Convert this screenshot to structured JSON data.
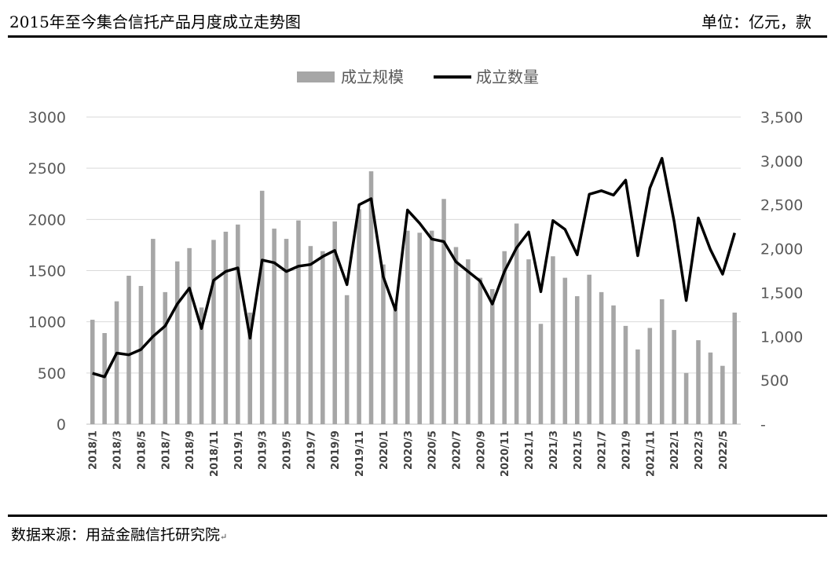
{
  "header": {
    "title": "2015年至今集合信托产品月度成立走势图",
    "unit": "单位：亿元，款"
  },
  "footer": {
    "source": "数据来源：用益金融信托研究院",
    "return_mark": "↵"
  },
  "colors": {
    "bar": "#a6a6a6",
    "line": "#000000",
    "grid": "#d9d9d9",
    "axis": "#bfbfbf"
  },
  "chart_data": {
    "type": "bar+line",
    "legend_position": "top-center",
    "grid": true,
    "categories": [
      "2018/1",
      "2018/2",
      "2018/3",
      "2018/4",
      "2018/5",
      "2018/6",
      "2018/7",
      "2018/8",
      "2018/9",
      "2018/10",
      "2018/11",
      "2018/12",
      "2019/1",
      "2019/2",
      "2019/3",
      "2019/4",
      "2019/5",
      "2019/6",
      "2019/7",
      "2019/8",
      "2019/9",
      "2019/10",
      "2019/11",
      "2019/12",
      "2020/1",
      "2020/2",
      "2020/3",
      "2020/4",
      "2020/5",
      "2020/6",
      "2020/7",
      "2020/8",
      "2020/9",
      "2020/10",
      "2020/11",
      "2020/12",
      "2021/1",
      "2021/2",
      "2021/3",
      "2021/4",
      "2021/5",
      "2021/6",
      "2021/7",
      "2021/8",
      "2021/9",
      "2021/10",
      "2021/11",
      "2021/12",
      "2022/1",
      "2022/2",
      "2022/3",
      "2022/4",
      "2022/5",
      "2022/6"
    ],
    "x_tick_labels": [
      "2018/1",
      "2018/3",
      "2018/5",
      "2018/7",
      "2018/9",
      "2018/11",
      "2019/1",
      "2019/3",
      "2019/5",
      "2019/7",
      "2019/9",
      "2019/11",
      "2020/1",
      "2020/3",
      "2020/5",
      "2020/7",
      "2020/9",
      "2020/11",
      "2021/1",
      "2021/3",
      "2021/5",
      "2021/7",
      "2021/9",
      "2021/11",
      "2022/1",
      "2022/3",
      "2022/5"
    ],
    "series": [
      {
        "name": "成立规模",
        "type": "bar",
        "axis": "left",
        "values": [
          1020,
          890,
          1200,
          1450,
          1350,
          1810,
          1290,
          1590,
          1720,
          1140,
          1800,
          1880,
          1950,
          1090,
          2280,
          1910,
          1810,
          1990,
          1740,
          1690,
          1980,
          1260,
          2100,
          2470,
          1560,
          1140,
          1890,
          1870,
          1890,
          2200,
          1730,
          1610,
          1430,
          1320,
          1690,
          1960,
          1610,
          980,
          1640,
          1430,
          1250,
          1460,
          1290,
          1160,
          960,
          730,
          940,
          1220,
          920,
          500,
          820,
          700,
          570,
          1090
        ]
      },
      {
        "name": "成立数量",
        "type": "line",
        "axis": "right",
        "values": [
          580,
          540,
          810,
          790,
          850,
          1000,
          1120,
          1370,
          1550,
          1090,
          1640,
          1740,
          1780,
          980,
          1870,
          1840,
          1740,
          1800,
          1820,
          1910,
          1980,
          1590,
          2500,
          2570,
          1680,
          1300,
          2440,
          2290,
          2110,
          2080,
          1850,
          1740,
          1630,
          1370,
          1740,
          2010,
          2190,
          1510,
          2320,
          2220,
          1930,
          2620,
          2660,
          2610,
          2780,
          1920,
          2690,
          3030,
          2310,
          1410,
          2350,
          1990,
          1710,
          2180
        ]
      }
    ],
    "y_left": {
      "min": 0,
      "max": 3000,
      "ticks": [
        "0",
        "500",
        "1000",
        "1500",
        "2000",
        "2500",
        "3000"
      ]
    },
    "y_right": {
      "min": 0,
      "max": 3500,
      "ticks": [
        "-",
        "500",
        "1,000",
        "1,500",
        "2,000",
        "2,500",
        "3,000",
        "3,500"
      ]
    }
  }
}
